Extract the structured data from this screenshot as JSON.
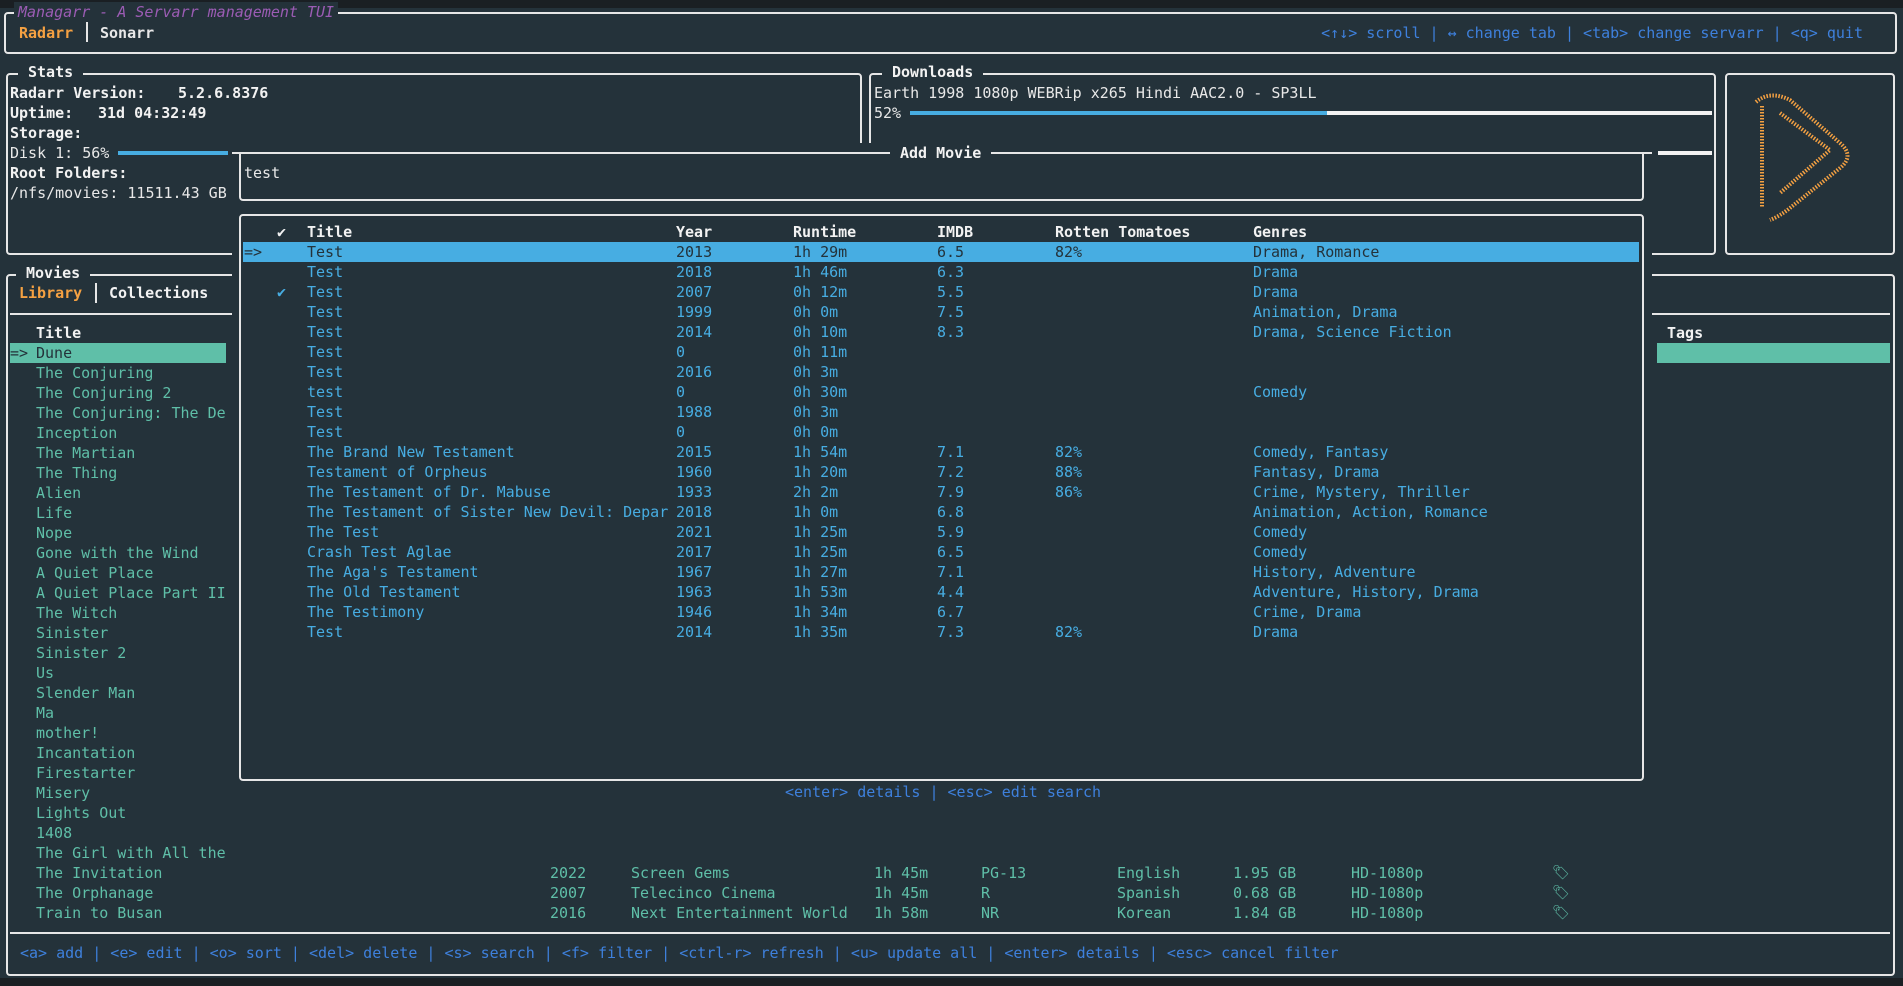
{
  "app": {
    "title": "Managarr - A Servarr management TUI"
  },
  "servarr_tabs": [
    {
      "label": "Radarr",
      "active": true
    },
    {
      "label": "Sonarr",
      "active": false
    }
  ],
  "header_help": "<↑↓> scroll | ↔ change tab | <tab> change servarr | <q> quit",
  "stats": {
    "title": "Stats",
    "version_label": "Radarr Version:",
    "version": "5.2.6.8376",
    "uptime_label": "Uptime:",
    "uptime": "31d 04:32:49",
    "storage_label": "Storage:",
    "disk_label": "Disk 1: 56%",
    "disk_percent": 56,
    "root_folders_label": "Root Folders:",
    "root_folder": "/nfs/movies: 11511.43 GB"
  },
  "downloads": {
    "title": "Downloads",
    "items": [
      {
        "name": "Earth 1998 1080p WEBRip x265 Hindi AAC2.0 - SP3LL",
        "progress_label": "52%",
        "progress": 52
      }
    ]
  },
  "logo_icon": "radarr-logo-icon",
  "movies": {
    "title": "Movies",
    "tabs": [
      {
        "label": "Library",
        "active": true
      },
      {
        "label": "Collections",
        "active": false
      }
    ],
    "title_header": "Title",
    "tags_header": "Tags",
    "selected_marker": "=>",
    "rows": [
      {
        "title": "Dune"
      },
      {
        "title": "The Conjuring"
      },
      {
        "title": "The Conjuring 2"
      },
      {
        "title": "The Conjuring: The De"
      },
      {
        "title": "Inception"
      },
      {
        "title": "The Martian"
      },
      {
        "title": "The Thing"
      },
      {
        "title": "Alien"
      },
      {
        "title": "Life"
      },
      {
        "title": "Nope"
      },
      {
        "title": "Gone with the Wind"
      },
      {
        "title": "A Quiet Place"
      },
      {
        "title": "A Quiet Place Part II"
      },
      {
        "title": "The Witch"
      },
      {
        "title": "Sinister"
      },
      {
        "title": "Sinister 2"
      },
      {
        "title": "Us"
      },
      {
        "title": "Slender Man"
      },
      {
        "title": "Ma"
      },
      {
        "title": "mother!"
      },
      {
        "title": "Incantation"
      },
      {
        "title": "Firestarter"
      },
      {
        "title": "Misery"
      },
      {
        "title": "Lights Out"
      },
      {
        "title": "1408"
      },
      {
        "title": "The Girl with All the"
      },
      {
        "title": "The Invitation",
        "year": "2022",
        "studio": "Screen Gems",
        "runtime": "1h 45m",
        "rating": "PG-13",
        "language": "English",
        "size": "1.95 GB",
        "quality": "HD-1080p",
        "icon": "tag-icon"
      },
      {
        "title": "The Orphanage",
        "year": "2007",
        "studio": "Telecinco Cinema",
        "runtime": "1h 45m",
        "rating": "R",
        "language": "Spanish",
        "size": "0.68 GB",
        "quality": "HD-1080p",
        "icon": "tag-icon"
      },
      {
        "title": "Train to Busan",
        "year": "2016",
        "studio": "Next Entertainment World",
        "runtime": "1h 58m",
        "rating": "NR",
        "language": "Korean",
        "size": "1.84 GB",
        "quality": "HD-1080p",
        "icon": "tag-icon"
      }
    ],
    "footer_help": "<a> add | <e> edit | <o> sort | <del> delete | <s> search | <f> filter | <ctrl-r> refresh | <u> update all | <enter> details | <esc> cancel filter"
  },
  "add_movie": {
    "title": "Add Movie",
    "search_value": "test",
    "headers": {
      "check": "✔",
      "title": "Title",
      "year": "Year",
      "runtime": "Runtime",
      "imdb": "IMDB",
      "rotten_tomatoes": "Rotten Tomatoes",
      "genres": "Genres"
    },
    "selected_marker": "=>",
    "results": [
      {
        "check": "",
        "title": "Test",
        "year": "2013",
        "runtime": "1h 29m",
        "imdb": "6.5",
        "rt": "82%",
        "genres": "Drama, Romance"
      },
      {
        "check": "",
        "title": "Test",
        "year": "2018",
        "runtime": "1h 46m",
        "imdb": "6.3",
        "rt": "",
        "genres": "Drama"
      },
      {
        "check": "✔",
        "title": "Test",
        "year": "2007",
        "runtime": "0h 12m",
        "imdb": "5.5",
        "rt": "",
        "genres": "Drama"
      },
      {
        "check": "",
        "title": "Test",
        "year": "1999",
        "runtime": "0h 0m",
        "imdb": "7.5",
        "rt": "",
        "genres": "Animation, Drama"
      },
      {
        "check": "",
        "title": "Test",
        "year": "2014",
        "runtime": "0h 10m",
        "imdb": "8.3",
        "rt": "",
        "genres": "Drama, Science Fiction"
      },
      {
        "check": "",
        "title": "Test",
        "year": "0",
        "runtime": "0h 11m",
        "imdb": "",
        "rt": "",
        "genres": ""
      },
      {
        "check": "",
        "title": "Test",
        "year": "2016",
        "runtime": "0h 3m",
        "imdb": "",
        "rt": "",
        "genres": ""
      },
      {
        "check": "",
        "title": "test",
        "year": "0",
        "runtime": "0h 30m",
        "imdb": "",
        "rt": "",
        "genres": "Comedy"
      },
      {
        "check": "",
        "title": "Test",
        "year": "1988",
        "runtime": "0h 3m",
        "imdb": "",
        "rt": "",
        "genres": ""
      },
      {
        "check": "",
        "title": "Test",
        "year": "0",
        "runtime": "0h 0m",
        "imdb": "",
        "rt": "",
        "genres": ""
      },
      {
        "check": "",
        "title": "The Brand New Testament",
        "year": "2015",
        "runtime": "1h 54m",
        "imdb": "7.1",
        "rt": "82%",
        "genres": "Comedy, Fantasy"
      },
      {
        "check": "",
        "title": "Testament of Orpheus",
        "year": "1960",
        "runtime": "1h 20m",
        "imdb": "7.2",
        "rt": "88%",
        "genres": "Fantasy, Drama"
      },
      {
        "check": "",
        "title": "The Testament of Dr. Mabuse",
        "year": "1933",
        "runtime": "2h 2m",
        "imdb": "7.9",
        "rt": "86%",
        "genres": "Crime, Mystery, Thriller"
      },
      {
        "check": "",
        "title": "The Testament of Sister New Devil: Depar",
        "year": "2018",
        "runtime": "1h 0m",
        "imdb": "6.8",
        "rt": "",
        "genres": "Animation, Action, Romance"
      },
      {
        "check": "",
        "title": "The Test",
        "year": "2021",
        "runtime": "1h 25m",
        "imdb": "5.9",
        "rt": "",
        "genres": "Comedy"
      },
      {
        "check": "",
        "title": "Crash Test Aglae",
        "year": "2017",
        "runtime": "1h 25m",
        "imdb": "6.5",
        "rt": "",
        "genres": "Comedy"
      },
      {
        "check": "",
        "title": "The Aga's Testament",
        "year": "1967",
        "runtime": "1h 27m",
        "imdb": "7.1",
        "rt": "",
        "genres": "History, Adventure"
      },
      {
        "check": "",
        "title": "The Old Testament",
        "year": "1963",
        "runtime": "1h 53m",
        "imdb": "4.4",
        "rt": "",
        "genres": "Adventure, History, Drama"
      },
      {
        "check": "",
        "title": "The Testimony",
        "year": "1946",
        "runtime": "1h 34m",
        "imdb": "6.7",
        "rt": "",
        "genres": "Crime, Drama"
      },
      {
        "check": "",
        "title": "Test",
        "year": "2014",
        "runtime": "1h 35m",
        "imdb": "7.3",
        "rt": "82%",
        "genres": "Drama"
      }
    ],
    "help": "<enter> details | <esc> edit search"
  },
  "colors": {
    "background": "#24323a",
    "accent_orange": "#f5a142",
    "title_purple": "#9b5cb4",
    "library_teal": "#5fbfa8",
    "result_blue": "#47ade2",
    "help_blue": "#3e80dc"
  }
}
